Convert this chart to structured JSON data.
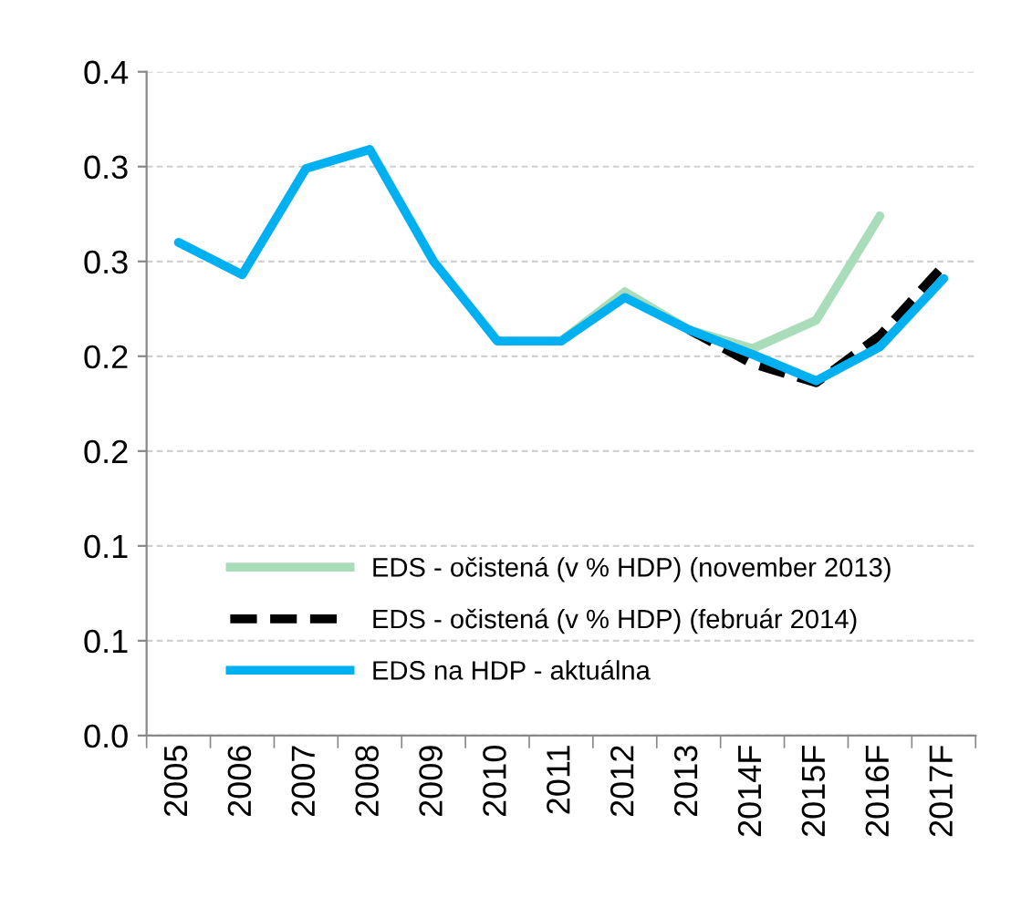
{
  "chart_data": {
    "type": "line",
    "categories": [
      "2005",
      "2006",
      "2007",
      "2008",
      "2009",
      "2010",
      "2011",
      "2012",
      "2013",
      "2014F",
      "2015F",
      "2016F",
      "2017F"
    ],
    "series": [
      {
        "name": "EDS - očistená (v % HDP) (november 2013)",
        "color": "#a9dcb8",
        "line_style": "solid",
        "values": [
          null,
          null,
          null,
          null,
          null,
          null,
          0.208,
          0.234,
          0.214,
          0.204,
          0.219,
          0.274,
          null
        ]
      },
      {
        "name": "EDS - očistená (v % HDP) (február 2014)",
        "color": "#000000",
        "line_style": "dashed",
        "values": [
          null,
          null,
          null,
          null,
          null,
          null,
          null,
          null,
          0.214,
          0.196,
          0.186,
          0.211,
          0.248
        ]
      },
      {
        "name": "EDS na HDP - aktuálna",
        "color": "#00b0f0",
        "line_style": "solid",
        "values": [
          0.26,
          0.243,
          0.299,
          0.309,
          0.25,
          0.208,
          0.208,
          0.231,
          0.214,
          0.201,
          0.187,
          0.205,
          0.241
        ]
      }
    ],
    "ylim": [
      0,
      0.35
    ],
    "yticks": [
      {
        "value": 0,
        "label": "0.0"
      },
      {
        "value": 0.05,
        "label": "0.1"
      },
      {
        "value": 0.1,
        "label": "0.1"
      },
      {
        "value": 0.15,
        "label": "0.2"
      },
      {
        "value": 0.2,
        "label": "0.2"
      },
      {
        "value": 0.25,
        "label": "0.3"
      },
      {
        "value": 0.3,
        "label": "0.3"
      },
      {
        "value": 0.35,
        "label": "0.4"
      }
    ],
    "grid": "y",
    "legend": "bottom",
    "marker": "none"
  }
}
